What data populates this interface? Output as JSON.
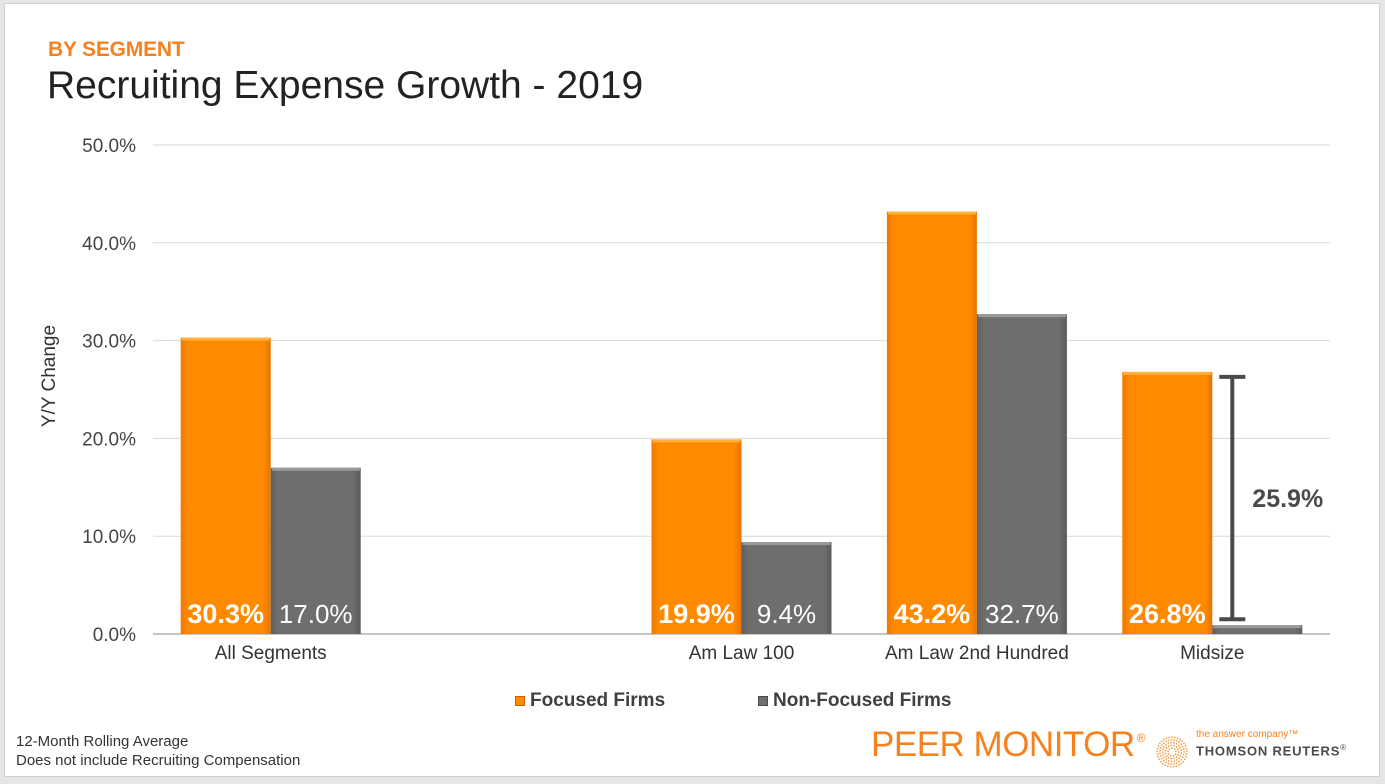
{
  "slide": {
    "kicker": "BY SEGMENT",
    "title": "Recruiting Expense Growth - 2019",
    "footnotes": [
      "12-Month Rolling Average",
      "Does not include Recruiting Compensation"
    ],
    "brand": {
      "name": "PEER MONITOR",
      "mark": "®",
      "tagline": "the answer company™",
      "company": "THOMSON REUTERS",
      "company_mark": "®"
    }
  },
  "colors": {
    "focused": "#ff8a00",
    "non_focused": "#6e6e6e",
    "accent": "#f5821f",
    "gridline": "#d9d9d9",
    "axis": "#8c8c8c",
    "annotation": "#4a4a4a"
  },
  "chart_data": {
    "type": "bar",
    "title": "Recruiting Expense Growth - 2019",
    "xlabel": "",
    "ylabel": "Y/Y Change",
    "ylim": [
      0,
      50
    ],
    "yticks": [
      0,
      10,
      20,
      30,
      40,
      50
    ],
    "ytick_labels": [
      "0.0%",
      "10.0%",
      "20.0%",
      "30.0%",
      "40.0%",
      "50.0%"
    ],
    "grid": true,
    "legend_position": "bottom-center",
    "categories": [
      "All Segments",
      "",
      "Am Law 100",
      "Am Law 2nd Hundred",
      "Midsize"
    ],
    "series": [
      {
        "name": "Focused Firms",
        "values": [
          30.3,
          null,
          19.9,
          43.2,
          26.8
        ],
        "labels": [
          "30.3%",
          "",
          "19.9%",
          "43.2%",
          "26.8%"
        ]
      },
      {
        "name": "Non-Focused Firms",
        "values": [
          17.0,
          null,
          9.4,
          32.7,
          0.9
        ],
        "labels": [
          "17.0%",
          "",
          "9.4%",
          "32.7%",
          ""
        ]
      }
    ],
    "annotations": [
      {
        "type": "difference-bracket",
        "category": "Midsize",
        "from": 0.9,
        "to": 26.8,
        "label": "25.9%"
      }
    ]
  }
}
